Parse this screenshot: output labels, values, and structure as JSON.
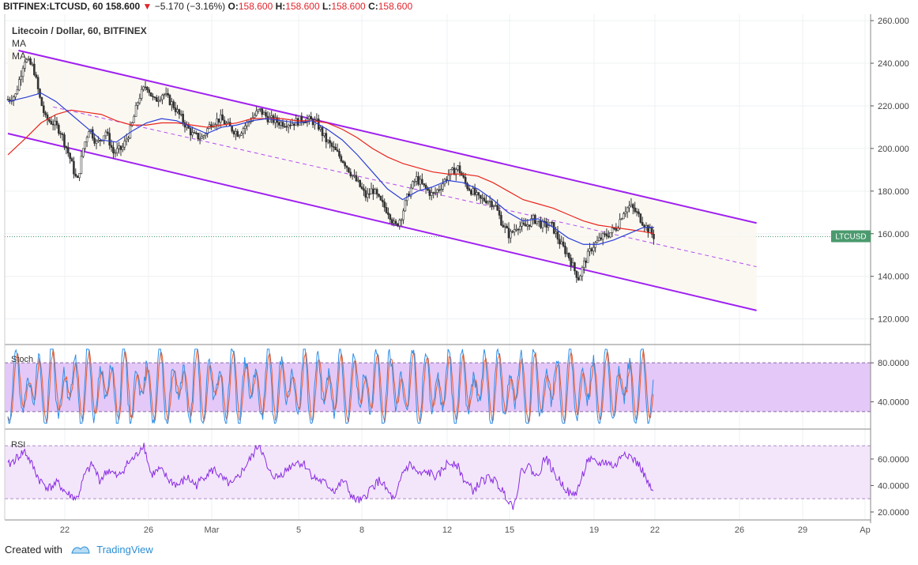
{
  "header": {
    "symbol": "BITFINEX:LTCUSD, 60",
    "last": "158.600",
    "arrow": "▼",
    "change": "−5.170 (−3.16%)",
    "o_label": "O:",
    "o_value": "158.600",
    "h_label": "H:",
    "h_value": "158.600",
    "l_label": "L:",
    "l_value": "158.600",
    "c_label": "C:",
    "c_value": "158.600"
  },
  "legend": {
    "title": "Litecoin / Dollar, 60, BITFINEX",
    "ma1": "MA",
    "ma2": "MA",
    "stoch": "Stoch",
    "rsi": "RSI"
  },
  "price_tag": "LTCUSD",
  "footer": {
    "created": "Created with",
    "brand": "TradingView"
  },
  "colors": {
    "channel": "#a020f0",
    "ma_fast": "#2b3fd6",
    "ma_slow": "#e8251c",
    "candle": "#333333",
    "stoch_k": "#2f8fe6",
    "stoch_d": "#f05a28",
    "stoch_band": "#e3c8f8",
    "rsi_line": "#8a2be2",
    "rsi_band": "#f3e6fb",
    "price_tag_bg": "#4a9a6e"
  },
  "chart_data": [
    {
      "type": "candlestick",
      "title": "Litecoin / Dollar, 60, BITFINEX",
      "x_ticks": [
        "22",
        "26",
        "Mar",
        "5",
        "8",
        "12",
        "15",
        "19",
        "22",
        "26",
        "29",
        "Ap"
      ],
      "y_ticks": [
        "260.000",
        "240.000",
        "220.000",
        "200.000",
        "180.000",
        "160.000",
        "140.000",
        "120.000"
      ],
      "ylim": [
        108,
        263
      ],
      "x_range_days": [
        -2.7,
        39.5
      ],
      "last_price": 158.6,
      "price_path": [
        [
          -2.7,
          223
        ],
        [
          -2.2,
          225
        ],
        [
          -1.6,
          242
        ],
        [
          -1.0,
          238
        ],
        [
          -0.6,
          224
        ],
        [
          -0.2,
          214
        ],
        [
          0.3,
          212
        ],
        [
          0.8,
          208
        ],
        [
          1.4,
          196
        ],
        [
          1.9,
          184
        ],
        [
          2.3,
          200
        ],
        [
          2.7,
          210
        ],
        [
          3.2,
          202
        ],
        [
          3.8,
          208
        ],
        [
          4.3,
          198
        ],
        [
          4.9,
          200
        ],
        [
          5.5,
          210
        ],
        [
          6.0,
          224
        ],
        [
          6.5,
          230
        ],
        [
          7.0,
          222
        ],
        [
          7.6,
          226
        ],
        [
          8.3,
          220
        ],
        [
          9.0,
          212
        ],
        [
          9.6,
          206
        ],
        [
          10.2,
          205
        ],
        [
          10.8,
          212
        ],
        [
          11.4,
          214
        ],
        [
          12.0,
          210
        ],
        [
          12.6,
          207
        ],
        [
          13.2,
          212
        ],
        [
          14.0,
          218
        ],
        [
          14.6,
          214
        ],
        [
          15.4,
          212
        ],
        [
          16.2,
          212
        ],
        [
          17.0,
          214
        ],
        [
          17.8,
          212
        ],
        [
          18.4,
          204
        ],
        [
          19.0,
          199
        ],
        [
          19.6,
          194
        ],
        [
          20.2,
          187
        ],
        [
          20.6,
          183
        ],
        [
          21.1,
          177
        ],
        [
          21.5,
          181
        ],
        [
          22.0,
          175
        ],
        [
          22.6,
          170
        ],
        [
          23.0,
          163
        ],
        [
          23.4,
          168
        ],
        [
          23.9,
          179
        ],
        [
          24.4,
          186
        ],
        [
          24.9,
          182
        ],
        [
          25.5,
          178
        ],
        [
          26.0,
          182
        ],
        [
          26.6,
          188
        ],
        [
          27.2,
          191
        ],
        [
          27.7,
          183
        ],
        [
          28.1,
          180
        ],
        [
          28.6,
          176
        ],
        [
          29.1,
          176
        ],
        [
          29.6,
          174
        ],
        [
          30.1,
          165
        ],
        [
          30.6,
          159
        ],
        [
          31.1,
          164
        ],
        [
          31.6,
          163
        ],
        [
          32.2,
          167
        ],
        [
          32.8,
          164
        ],
        [
          33.4,
          164
        ],
        [
          34.0,
          155
        ],
        [
          34.5,
          150
        ],
        [
          34.9,
          143
        ],
        [
          35.2,
          139
        ],
        [
          35.6,
          147
        ],
        [
          36.1,
          154
        ],
        [
          36.7,
          158
        ],
        [
          37.2,
          160
        ],
        [
          37.7,
          163
        ],
        [
          38.2,
          171
        ],
        [
          38.6,
          173
        ],
        [
          39.0,
          170
        ],
        [
          39.4,
          166
        ],
        [
          39.8,
          162
        ],
        [
          40.2,
          158.6
        ]
      ],
      "ma_fast": [
        [
          -2.7,
          222
        ],
        [
          -1.5,
          224
        ],
        [
          -0.5,
          226
        ],
        [
          0.5,
          222
        ],
        [
          1.5,
          216
        ],
        [
          2.5,
          210
        ],
        [
          3.5,
          204
        ],
        [
          4.5,
          203
        ],
        [
          5.5,
          208
        ],
        [
          6.5,
          212
        ],
        [
          7.5,
          214
        ],
        [
          8.5,
          213
        ],
        [
          9.5,
          210
        ],
        [
          10.5,
          207
        ],
        [
          11.5,
          210
        ],
        [
          12.5,
          211
        ],
        [
          13.5,
          213
        ],
        [
          14.5,
          214
        ],
        [
          15.5,
          213
        ],
        [
          16.5,
          212
        ],
        [
          17.5,
          213
        ],
        [
          18.5,
          209
        ],
        [
          19.5,
          204
        ],
        [
          20.5,
          197
        ],
        [
          21.5,
          189
        ],
        [
          22.5,
          181
        ],
        [
          23.5,
          176
        ],
        [
          24.5,
          180
        ],
        [
          25.5,
          182
        ],
        [
          26.5,
          185
        ],
        [
          27.5,
          184
        ],
        [
          28.5,
          181
        ],
        [
          29.5,
          176
        ],
        [
          30.5,
          170
        ],
        [
          31.5,
          166
        ],
        [
          32.5,
          167
        ],
        [
          33.5,
          163
        ],
        [
          34.5,
          158
        ],
        [
          35.5,
          155
        ],
        [
          36.5,
          155
        ],
        [
          37.5,
          157
        ],
        [
          38.5,
          160
        ],
        [
          39.5,
          163
        ],
        [
          40.2,
          163
        ]
      ],
      "ma_slow": [
        [
          -2.7,
          197
        ],
        [
          -1.5,
          205
        ],
        [
          -0.5,
          212
        ],
        [
          0.5,
          216
        ],
        [
          1.5,
          218
        ],
        [
          2.5,
          217
        ],
        [
          3.5,
          216
        ],
        [
          4.5,
          213
        ],
        [
          5.5,
          211
        ],
        [
          6.5,
          211
        ],
        [
          7.5,
          212
        ],
        [
          8.5,
          212
        ],
        [
          9.5,
          211
        ],
        [
          10.5,
          210
        ],
        [
          11.5,
          211
        ],
        [
          12.5,
          212
        ],
        [
          13.5,
          214
        ],
        [
          14.5,
          214
        ],
        [
          15.5,
          214
        ],
        [
          16.5,
          213
        ],
        [
          17.5,
          213
        ],
        [
          18.5,
          212
        ],
        [
          19.5,
          209
        ],
        [
          20.5,
          205
        ],
        [
          21.5,
          200
        ],
        [
          22.5,
          196
        ],
        [
          23.5,
          193
        ],
        [
          24.5,
          191
        ],
        [
          25.5,
          189
        ],
        [
          26.5,
          188
        ],
        [
          27.5,
          188
        ],
        [
          28.5,
          187
        ],
        [
          29.5,
          184
        ],
        [
          30.5,
          180
        ],
        [
          31.5,
          176
        ],
        [
          32.5,
          174
        ],
        [
          33.5,
          172
        ],
        [
          34.5,
          169
        ],
        [
          35.5,
          166
        ],
        [
          36.5,
          164
        ],
        [
          37.5,
          163
        ],
        [
          38.5,
          162
        ],
        [
          39.5,
          161
        ],
        [
          40.2,
          160
        ]
      ],
      "channel_upper": [
        [
          -2.0,
          246
        ],
        [
          47.0,
          165
        ]
      ],
      "channel_lower": [
        [
          -2.7,
          207
        ],
        [
          47.0,
          124
        ]
      ],
      "channel_mid": [
        [
          0.3,
          219.5
        ],
        [
          47.0,
          144.5
        ]
      ]
    },
    {
      "type": "line",
      "name": "Stoch",
      "y_ticks": [
        "80.0000",
        "40.0000"
      ],
      "ylim": [
        12,
        98
      ],
      "band": [
        30,
        80
      ],
      "k_period_days": 0.8,
      "k_phase": 0,
      "d_phase": 0.6,
      "amplitude": 38,
      "center": 55
    },
    {
      "type": "line",
      "name": "RSI",
      "y_ticks": [
        "60.0000",
        "40.0000",
        "20.0000"
      ],
      "ylim": [
        14,
        82
      ],
      "band": [
        30,
        70
      ],
      "values": [
        [
          -2.7,
          55
        ],
        [
          -2.2,
          60
        ],
        [
          -1.6,
          66
        ],
        [
          -1.2,
          58
        ],
        [
          -0.6,
          44
        ],
        [
          0.0,
          38
        ],
        [
          0.6,
          42
        ],
        [
          1.2,
          34
        ],
        [
          1.9,
          30
        ],
        [
          2.4,
          48
        ],
        [
          2.9,
          56
        ],
        [
          3.4,
          44
        ],
        [
          4.0,
          52
        ],
        [
          4.6,
          46
        ],
        [
          5.2,
          56
        ],
        [
          5.8,
          62
        ],
        [
          6.3,
          72
        ],
        [
          6.8,
          48
        ],
        [
          7.4,
          52
        ],
        [
          8.0,
          44
        ],
        [
          8.6,
          40
        ],
        [
          9.2,
          46
        ],
        [
          9.8,
          40
        ],
        [
          10.4,
          48
        ],
        [
          11.0,
          52
        ],
        [
          11.6,
          44
        ],
        [
          12.2,
          40
        ],
        [
          12.8,
          50
        ],
        [
          13.4,
          60
        ],
        [
          14.0,
          72
        ],
        [
          14.6,
          50
        ],
        [
          15.2,
          46
        ],
        [
          15.8,
          52
        ],
        [
          16.4,
          58
        ],
        [
          17.0,
          56
        ],
        [
          17.6,
          46
        ],
        [
          18.3,
          42
        ],
        [
          19.0,
          36
        ],
        [
          19.6,
          44
        ],
        [
          20.2,
          30
        ],
        [
          20.8,
          28
        ],
        [
          21.4,
          38
        ],
        [
          22.0,
          44
        ],
        [
          22.6,
          34
        ],
        [
          23.0,
          28
        ],
        [
          23.5,
          50
        ],
        [
          24.0,
          56
        ],
        [
          24.6,
          48
        ],
        [
          25.2,
          50
        ],
        [
          25.8,
          46
        ],
        [
          26.4,
          56
        ],
        [
          27.0,
          58
        ],
        [
          27.6,
          44
        ],
        [
          28.2,
          36
        ],
        [
          28.8,
          44
        ],
        [
          29.4,
          46
        ],
        [
          30.0,
          38
        ],
        [
          30.5,
          30
        ],
        [
          30.9,
          24
        ],
        [
          31.3,
          48
        ],
        [
          31.8,
          56
        ],
        [
          32.4,
          46
        ],
        [
          33.0,
          62
        ],
        [
          33.6,
          48
        ],
        [
          34.2,
          40
        ],
        [
          34.7,
          32
        ],
        [
          35.1,
          36
        ],
        [
          35.4,
          46
        ],
        [
          35.8,
          60
        ],
        [
          36.4,
          56
        ],
        [
          37.0,
          58
        ],
        [
          37.6,
          54
        ],
        [
          38.2,
          66
        ],
        [
          38.8,
          60
        ],
        [
          39.3,
          54
        ],
        [
          39.7,
          44
        ],
        [
          40.0,
          36
        ],
        [
          40.2,
          34
        ]
      ]
    }
  ]
}
